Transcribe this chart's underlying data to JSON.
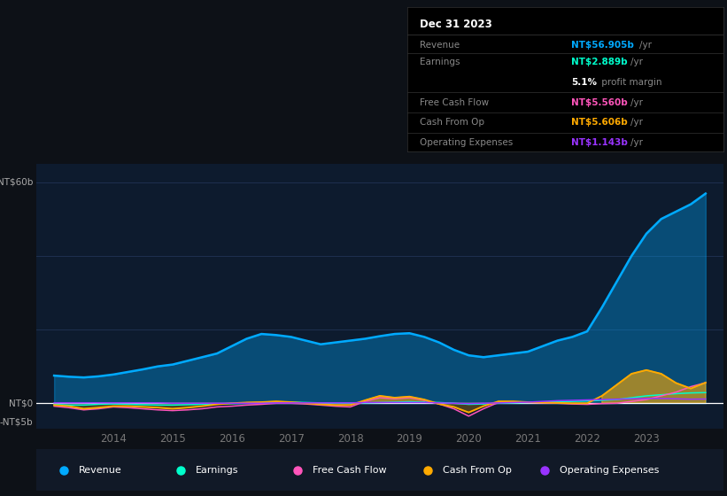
{
  "bg_color": "#0d1117",
  "plot_bg_color": "#0d1b2e",
  "grid_color": "#1e3050",
  "years": [
    2013.0,
    2013.25,
    2013.5,
    2013.75,
    2014.0,
    2014.25,
    2014.5,
    2014.75,
    2015.0,
    2015.25,
    2015.5,
    2015.75,
    2016.0,
    2016.25,
    2016.5,
    2016.75,
    2017.0,
    2017.25,
    2017.5,
    2017.75,
    2018.0,
    2018.25,
    2018.5,
    2018.75,
    2019.0,
    2019.25,
    2019.5,
    2019.75,
    2020.0,
    2020.25,
    2020.5,
    2020.75,
    2021.0,
    2021.25,
    2021.5,
    2021.75,
    2022.0,
    2022.25,
    2022.5,
    2022.75,
    2023.0,
    2023.25,
    2023.5,
    2023.75,
    2024.0
  ],
  "revenue": [
    7.5,
    7.2,
    7.0,
    7.3,
    7.8,
    8.5,
    9.2,
    10.0,
    10.5,
    11.5,
    12.5,
    13.5,
    15.5,
    17.5,
    18.8,
    18.5,
    18.0,
    17.0,
    16.0,
    16.5,
    17.0,
    17.5,
    18.2,
    18.8,
    19.0,
    18.0,
    16.5,
    14.5,
    13.0,
    12.5,
    13.0,
    13.5,
    14.0,
    15.5,
    17.0,
    18.0,
    19.5,
    26.0,
    33.0,
    40.0,
    46.0,
    50.0,
    52.0,
    54.0,
    56.9
  ],
  "earnings": [
    -0.3,
    -0.5,
    -0.5,
    -0.3,
    -0.2,
    -0.3,
    -0.4,
    -0.5,
    -0.5,
    -0.4,
    -0.3,
    -0.2,
    -0.1,
    0.0,
    0.1,
    0.2,
    0.3,
    0.2,
    0.1,
    0.0,
    0.0,
    0.1,
    0.2,
    0.3,
    0.4,
    0.3,
    0.2,
    0.0,
    -0.3,
    -0.2,
    0.0,
    0.1,
    0.2,
    0.3,
    0.4,
    0.5,
    0.6,
    0.8,
    1.0,
    1.5,
    2.0,
    2.3,
    2.6,
    2.8,
    2.889
  ],
  "free_cash_flow": [
    -0.8,
    -1.2,
    -1.8,
    -1.5,
    -1.0,
    -1.2,
    -1.5,
    -1.8,
    -2.0,
    -1.8,
    -1.5,
    -1.0,
    -0.8,
    -0.5,
    -0.3,
    0.0,
    0.0,
    -0.2,
    -0.5,
    -0.8,
    -1.0,
    0.5,
    1.5,
    1.2,
    1.5,
    0.8,
    -0.2,
    -1.5,
    -3.5,
    -1.5,
    0.2,
    0.3,
    0.2,
    0.1,
    0.0,
    -0.2,
    -0.3,
    -0.1,
    0.0,
    0.5,
    1.0,
    2.0,
    3.0,
    4.5,
    5.56
  ],
  "cash_from_op": [
    -0.5,
    -0.8,
    -1.5,
    -1.2,
    -0.8,
    -0.8,
    -1.0,
    -1.2,
    -1.5,
    -1.2,
    -0.8,
    -0.3,
    0.0,
    0.2,
    0.3,
    0.5,
    0.3,
    0.0,
    -0.3,
    -0.5,
    -0.5,
    0.8,
    2.0,
    1.5,
    1.8,
    1.0,
    -0.2,
    -1.0,
    -2.5,
    -0.8,
    0.5,
    0.5,
    0.3,
    0.2,
    0.1,
    0.0,
    0.0,
    2.0,
    5.0,
    8.0,
    9.0,
    8.0,
    5.5,
    4.0,
    5.606
  ],
  "operating_expenses": [
    0.1,
    0.1,
    0.1,
    0.1,
    0.1,
    0.1,
    0.1,
    0.1,
    0.0,
    0.0,
    0.0,
    0.0,
    0.0,
    0.0,
    0.0,
    0.1,
    0.1,
    0.1,
    0.1,
    0.1,
    0.1,
    0.2,
    0.2,
    0.2,
    0.2,
    0.2,
    0.1,
    0.0,
    -0.1,
    0.0,
    0.1,
    0.2,
    0.3,
    0.5,
    0.7,
    0.8,
    0.9,
    1.0,
    1.1,
    1.2,
    1.3,
    1.3,
    1.2,
    1.1,
    1.143
  ],
  "revenue_color": "#00aaff",
  "earnings_color": "#00ffcc",
  "free_cash_flow_color": "#ff55bb",
  "cash_from_op_color": "#ffaa00",
  "operating_expenses_color": "#9933ff",
  "ylim_min": -7,
  "ylim_max": 65,
  "grid_yticks": [
    0,
    20,
    40,
    60
  ],
  "xlabel_ticks": [
    2014,
    2015,
    2016,
    2017,
    2018,
    2019,
    2020,
    2021,
    2022,
    2023
  ],
  "info_box": {
    "date": "Dec 31 2023",
    "revenue_label": "Revenue",
    "revenue_value": "NT$56.905b",
    "revenue_unit": "/yr",
    "earnings_label": "Earnings",
    "earnings_value": "NT$2.889b",
    "earnings_unit": "/yr",
    "profit_margin": "5.1%",
    "profit_margin_text": " profit margin",
    "fcf_label": "Free Cash Flow",
    "fcf_value": "NT$5.560b",
    "fcf_unit": "/yr",
    "cfo_label": "Cash From Op",
    "cfo_value": "NT$5.606b",
    "cfo_unit": "/yr",
    "opex_label": "Operating Expenses",
    "opex_value": "NT$1.143b",
    "opex_unit": "/yr"
  },
  "legend_items": [
    {
      "label": "Revenue",
      "color": "#00aaff"
    },
    {
      "label": "Earnings",
      "color": "#00ffcc"
    },
    {
      "label": "Free Cash Flow",
      "color": "#ff55bb"
    },
    {
      "label": "Cash From Op",
      "color": "#ffaa00"
    },
    {
      "label": "Operating Expenses",
      "color": "#9933ff"
    }
  ]
}
